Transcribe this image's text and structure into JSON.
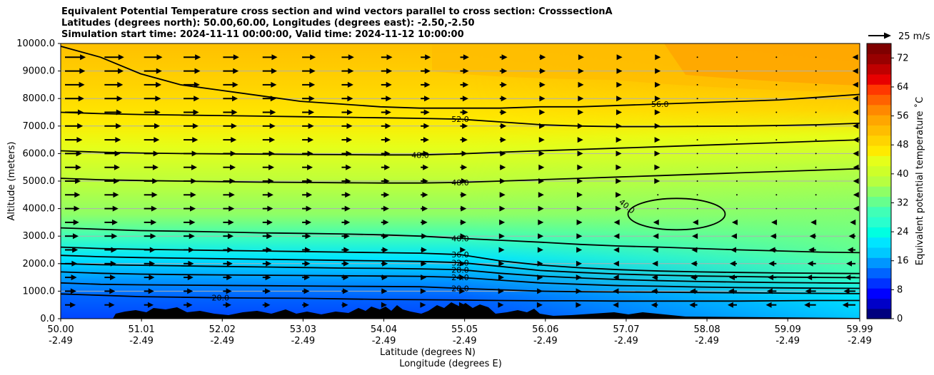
{
  "title_lines": [
    "Equivalent Potential Temperature cross section and wind vectors parallel to cross section: CrosssectionA",
    "Latitudes (degrees north): 50.00,60.00, Longitudes (degrees east): -2.50,-2.50",
    "Simulation start time: 2024-11-11 00:00:00, Valid time: 2024-11-12 10:00:00"
  ],
  "chart_data": {
    "type": "heatmap",
    "subtype": "vertical cross section with contours and wind vectors",
    "ylabel": "Altitude (meters)",
    "xlabel": "Latitude (degrees N)",
    "xlabel2": "Longitude (degrees E)",
    "ylim": [
      0,
      10000
    ],
    "yticks": [
      "0.0",
      "1000.0",
      "2000.0",
      "3000.0",
      "4000.0",
      "5000.0",
      "6000.0",
      "7000.0",
      "8000.0",
      "9000.0",
      "10000.0"
    ],
    "xlim": [
      50.0,
      59.99
    ],
    "xticks": [
      {
        "lat": "50.00",
        "lon": "-2.49"
      },
      {
        "lat": "51.01",
        "lon": "-2.49"
      },
      {
        "lat": "52.02",
        "lon": "-2.49"
      },
      {
        "lat": "53.03",
        "lon": "-2.49"
      },
      {
        "lat": "54.04",
        "lon": "-2.49"
      },
      {
        "lat": "55.05",
        "lon": "-2.49"
      },
      {
        "lat": "56.06",
        "lon": "-2.49"
      },
      {
        "lat": "57.07",
        "lon": "-2.49"
      },
      {
        "lat": "58.08",
        "lon": "-2.49"
      },
      {
        "lat": "59.09",
        "lon": "-2.49"
      },
      {
        "lat": "59.99",
        "lon": "-2.49"
      }
    ],
    "grid": "horizontal lines at y ticks",
    "colorbar": {
      "label": "Equivalent potential temperature ˚C",
      "ticks": [
        "0",
        "8",
        "16",
        "24",
        "32",
        "40",
        "48",
        "56",
        "64",
        "72"
      ],
      "range": [
        0,
        76
      ],
      "colors": [
        "#00007f",
        "#0000c8",
        "#0000ff",
        "#0032ff",
        "#0064ff",
        "#0096ff",
        "#00c8ff",
        "#00e5ff",
        "#00ffe1",
        "#29ffce",
        "#40ffb7",
        "#66ff8e",
        "#8eff66",
        "#b7ff40",
        "#ceff29",
        "#e5ff1a",
        "#ffea00",
        "#ffd400",
        "#ffbd00",
        "#ffa600",
        "#ff8800",
        "#ff6200",
        "#ff3800",
        "#e80000",
        "#bf0000",
        "#980000",
        "#7f0000"
      ]
    },
    "contours": [
      {
        "level": "20.0",
        "z": [
          900,
          850,
          800,
          780,
          760,
          750,
          740,
          720,
          700,
          690,
          680,
          660,
          650,
          650,
          640,
          640,
          640,
          640,
          650,
          660,
          660
        ]
      },
      {
        "level": "20.0",
        "z": [
          1300,
          1250,
          1230,
          1220,
          1210,
          1200,
          1190,
          1180,
          1170,
          1160,
          1100,
          1050,
          1000,
          980,
          970,
          960,
          950,
          940,
          930,
          920,
          910
        ]
      },
      {
        "level": "24.0",
        "z": [
          1700,
          1650,
          1620,
          1600,
          1590,
          1580,
          1570,
          1560,
          1550,
          1540,
          1500,
          1400,
          1300,
          1250,
          1200,
          1180,
          1150,
          1130,
          1120,
          1110,
          1100
        ]
      },
      {
        "level": "28.0",
        "z": [
          2000,
          1960,
          1940,
          1920,
          1900,
          1880,
          1860,
          1840,
          1830,
          1810,
          1780,
          1650,
          1550,
          1480,
          1420,
          1380,
          1350,
          1330,
          1310,
          1300,
          1290
        ]
      },
      {
        "level": "32.0",
        "z": [
          2300,
          2250,
          2220,
          2200,
          2180,
          2160,
          2140,
          2120,
          2100,
          2080,
          2040,
          1900,
          1750,
          1680,
          1620,
          1580,
          1550,
          1530,
          1510,
          1500,
          1490
        ]
      },
      {
        "level": "36.0",
        "z": [
          2600,
          2550,
          2520,
          2500,
          2480,
          2460,
          2440,
          2420,
          2400,
          2380,
          2330,
          2100,
          1950,
          1850,
          1780,
          1730,
          1700,
          1680,
          1660,
          1650,
          1640
        ]
      },
      {
        "level": "40.0",
        "z": [
          3300,
          3250,
          3200,
          3180,
          3150,
          3120,
          3100,
          3080,
          3050,
          3000,
          2920,
          2850,
          2780,
          2700,
          2640,
          2600,
          2550,
          2500,
          2460,
          2420,
          2400
        ]
      },
      {
        "level": "48.0",
        "z": [
          5100,
          5050,
          5020,
          5000,
          4980,
          4960,
          4950,
          4940,
          4930,
          4930,
          4950,
          5000,
          5050,
          5100,
          5150,
          5200,
          5250,
          5300,
          5350,
          5400,
          5450
        ]
      },
      {
        "level": "48.0",
        "z": [
          6100,
          6050,
          6020,
          6000,
          5990,
          5980,
          5970,
          5960,
          5950,
          5950,
          5990,
          6050,
          6100,
          6150,
          6200,
          6250,
          6300,
          6350,
          6400,
          6450,
          6500
        ]
      },
      {
        "level": "52.0",
        "z": [
          7500,
          7450,
          7420,
          7400,
          7380,
          7360,
          7340,
          7320,
          7300,
          7280,
          7250,
          7150,
          7050,
          7000,
          6980,
          6980,
          6990,
          7000,
          7020,
          7050,
          7100
        ]
      },
      {
        "level": "56.0",
        "z": [
          9900,
          9500,
          8900,
          8500,
          8300,
          8100,
          7900,
          7800,
          7700,
          7650,
          7650,
          7650,
          7700,
          7700,
          7750,
          7800,
          7850,
          7900,
          7950,
          8050,
          8150
        ]
      }
    ],
    "closed_contour": {
      "level": "40.0",
      "center_lat": 57.7,
      "center_z": 3800
    },
    "wind_reference": "25 m/s"
  }
}
